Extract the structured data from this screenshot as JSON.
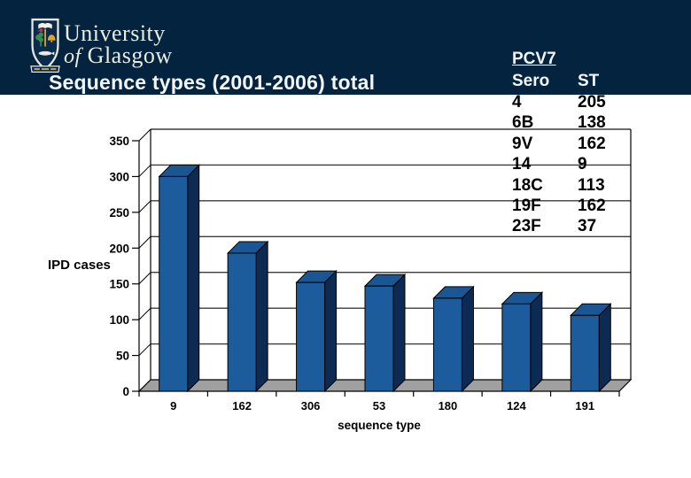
{
  "slide": {
    "title": "Sequence types (2001-2006) total",
    "logo": {
      "name_line1": "University",
      "name_line2_prefix": "of",
      "name_line2": "Glasgow"
    }
  },
  "pcv7_table": {
    "title": "PCV7",
    "columns": [
      "Sero",
      "ST"
    ],
    "rows": [
      {
        "sero": "4",
        "st": "205"
      },
      {
        "sero": "6B",
        "st": "138"
      },
      {
        "sero": "9V",
        "st": "162"
      },
      {
        "sero": "14",
        "st": "9"
      },
      {
        "sero": "18C",
        "st": "113"
      },
      {
        "sero": "19F",
        "st": "162"
      },
      {
        "sero": "23F",
        "st": "37"
      }
    ]
  },
  "chart_data": {
    "type": "bar",
    "style": "3d-column",
    "categories": [
      "9",
      "162",
      "306",
      "53",
      "180",
      "124",
      "191"
    ],
    "values": [
      300,
      193,
      152,
      147,
      130,
      122,
      106
    ],
    "xlabel": "sequence type",
    "ylabel": "IPD cases",
    "ylim": [
      0,
      350
    ],
    "yticks": [
      0,
      50,
      100,
      150,
      200,
      250,
      300,
      350
    ],
    "grid": true,
    "legend": false,
    "colors": {
      "bar_front": "#1D5C9C",
      "bar_top": "#1A5694",
      "bar_side": "#0D2B52",
      "floor": "#A0A0A0",
      "gridline": "#3C3C3C",
      "axis": "#000000"
    }
  },
  "colors": {
    "header_band": "#04233E",
    "title_text": "#F2F6F9"
  }
}
